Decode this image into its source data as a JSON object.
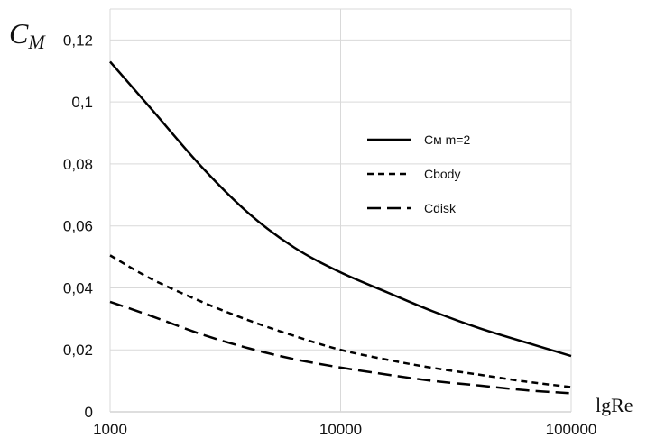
{
  "chart_data": {
    "type": "line",
    "title": "",
    "xlabel": "lgRe",
    "ylabel_main": "C",
    "ylabel_sub": "M",
    "x_scale": "log",
    "xlim": [
      1000,
      100000
    ],
    "ylim": [
      0,
      0.13
    ],
    "x_ticks": [
      {
        "value": 1000,
        "label": "1000"
      },
      {
        "value": 10000,
        "label": "10000"
      },
      {
        "value": 100000,
        "label": "100000"
      }
    ],
    "y_ticks": [
      {
        "value": 0,
        "label": "0"
      },
      {
        "value": 0.02,
        "label": "0,02"
      },
      {
        "value": 0.04,
        "label": "0,04"
      },
      {
        "value": 0.06,
        "label": "0,06"
      },
      {
        "value": 0.08,
        "label": "0,08"
      },
      {
        "value": 0.1,
        "label": "0,1"
      },
      {
        "value": 0.12,
        "label": "0,12"
      }
    ],
    "grid": true,
    "legend_position": "right",
    "series": [
      {
        "name": "Cм m=2",
        "dash": "solid",
        "x": [
          1000,
          1500,
          2500,
          4000,
          6300,
          10000,
          16000,
          25000,
          40000,
          63000,
          100000
        ],
        "y": [
          0.113,
          0.098,
          0.079,
          0.064,
          0.053,
          0.045,
          0.0385,
          0.0325,
          0.027,
          0.0225,
          0.018
        ]
      },
      {
        "name": "Cbody",
        "dash": "short",
        "x": [
          1000,
          1500,
          2500,
          4000,
          6300,
          10000,
          16000,
          25000,
          40000,
          63000,
          100000
        ],
        "y": [
          0.0505,
          0.043,
          0.0355,
          0.0295,
          0.0245,
          0.02,
          0.0168,
          0.0142,
          0.012,
          0.0098,
          0.008
        ]
      },
      {
        "name": "Cdisk",
        "dash": "long",
        "x": [
          1000,
          1500,
          2500,
          4000,
          6300,
          10000,
          16000,
          25000,
          40000,
          63000,
          100000
        ],
        "y": [
          0.0355,
          0.031,
          0.025,
          0.0205,
          0.017,
          0.0143,
          0.012,
          0.01,
          0.0085,
          0.007,
          0.006
        ]
      }
    ]
  }
}
